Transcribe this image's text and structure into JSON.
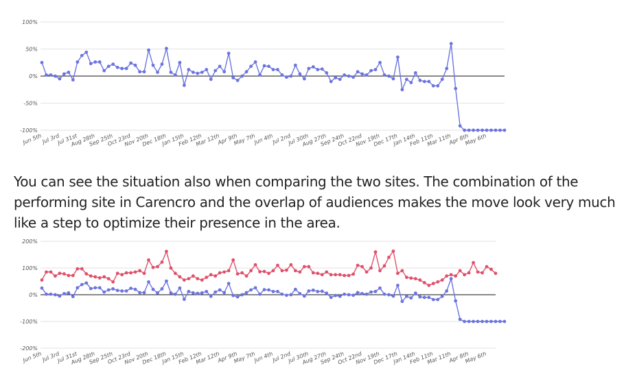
{
  "text": {
    "lines": [
      "You can see the situation also when comparing the two sites. The combination of the",
      "performing site in Carencro and the overlap of audiences makes the move look very much",
      "like a step to optimize their presence in the area."
    ]
  },
  "colors": {
    "blue": "#6b74e0",
    "red": "#e0506a",
    "grid": "#e2e2e2",
    "zero": "#111111"
  },
  "chart_data": [
    {
      "type": "line",
      "ylim": [
        -100,
        100
      ],
      "yticks": [
        "100%",
        "50%",
        "0%",
        "-50%",
        "-100%"
      ],
      "xticks": [
        "Jun 5th",
        "Jul 3rd",
        "Jul 31st",
        "Aug 28th",
        "Sep 25th",
        "Oct 23rd",
        "Nov 20th",
        "Dec 18th",
        "Jan 15th",
        "Feb 12th",
        "Mar 12th",
        "Apr 9th",
        "May 7th",
        "Jun 4th",
        "Jul 2nd",
        "Jul 30th",
        "Aug 27th",
        "Sep 24th",
        "Oct 22nd",
        "Nov 19th",
        "Dec 17th",
        "Jan 14th",
        "Feb 11th",
        "Mar 11th",
        "Apr 8th",
        "May 6th"
      ],
      "series": [
        {
          "color": "#6b74e0",
          "values": [
            25,
            2,
            2,
            0,
            -5,
            4,
            7,
            -7,
            26,
            38,
            44,
            23,
            26,
            26,
            10,
            18,
            22,
            16,
            14,
            14,
            24,
            20,
            8,
            8,
            48,
            20,
            7,
            22,
            51,
            7,
            2,
            25,
            -17,
            12,
            7,
            5,
            7,
            12,
            -6,
            10,
            18,
            8,
            42,
            -3,
            -8,
            0,
            8,
            18,
            26,
            2,
            19,
            18,
            12,
            12,
            2,
            -2,
            0,
            20,
            4,
            -5,
            14,
            17,
            12,
            13,
            6,
            -10,
            -3,
            -6,
            2,
            0,
            -2,
            8,
            4,
            2,
            10,
            12,
            25,
            2,
            0,
            -5,
            35,
            -25,
            -6,
            -12,
            6,
            -8,
            -10,
            -10,
            -18,
            -18,
            -6,
            14,
            60,
            -23,
            -92,
            -100,
            -100,
            -100,
            -100,
            -100,
            -100,
            -100,
            -100,
            -100,
            -100
          ]
        }
      ]
    },
    {
      "type": "line",
      "ylim": [
        -200,
        200
      ],
      "yticks": [
        "200%",
        "100%",
        "0%",
        "-100%",
        "-200%"
      ],
      "xticks": [
        "Jun 5th",
        "Jul 3rd",
        "Jul 31st",
        "Aug 28th",
        "Sep 25th",
        "Oct 23rd",
        "Nov 20th",
        "Dec 18th",
        "Jan 15th",
        "Feb 12th",
        "Mar 12th",
        "Apr 9th",
        "May 7th",
        "Jun 4th",
        "Jul 2nd",
        "Jul 30th",
        "Aug 27th",
        "Sep 24th",
        "Oct 22nd",
        "Nov 19th",
        "Dec 17th",
        "Jan 14th",
        "Feb 11th",
        "Mar 11th",
        "Apr 8th",
        "May 6th"
      ],
      "series": [
        {
          "color": "#e0506a",
          "values": [
            55,
            85,
            85,
            70,
            80,
            78,
            72,
            72,
            97,
            97,
            78,
            70,
            67,
            63,
            67,
            60,
            48,
            80,
            75,
            82,
            82,
            85,
            90,
            80,
            130,
            102,
            105,
            122,
            162,
            100,
            80,
            67,
            55,
            60,
            70,
            60,
            55,
            65,
            75,
            70,
            82,
            85,
            90,
            130,
            78,
            82,
            70,
            90,
            112,
            86,
            87,
            80,
            90,
            110,
            90,
            92,
            112,
            90,
            85,
            105,
            105,
            82,
            80,
            75,
            85,
            75,
            75,
            75,
            72,
            72,
            77,
            110,
            105,
            85,
            100,
            160,
            90,
            108,
            140,
            163,
            80,
            90,
            65,
            62,
            60,
            55,
            45,
            35,
            42,
            48,
            55,
            70,
            75,
            70,
            90,
            75,
            82,
            120,
            85,
            82,
            105,
            95,
            80
          ]
        },
        {
          "color": "#6b74e0",
          "values": [
            25,
            2,
            2,
            0,
            -5,
            4,
            7,
            -7,
            26,
            38,
            44,
            23,
            26,
            26,
            10,
            18,
            22,
            16,
            14,
            14,
            24,
            20,
            8,
            8,
            48,
            20,
            7,
            22,
            51,
            7,
            2,
            25,
            -17,
            12,
            7,
            5,
            7,
            12,
            -6,
            10,
            18,
            8,
            42,
            -3,
            -8,
            0,
            8,
            18,
            26,
            2,
            19,
            18,
            12,
            12,
            2,
            -2,
            0,
            20,
            4,
            -5,
            14,
            17,
            12,
            13,
            6,
            -10,
            -3,
            -6,
            2,
            0,
            -2,
            8,
            4,
            2,
            10,
            12,
            25,
            2,
            0,
            -5,
            35,
            -25,
            -6,
            -12,
            6,
            -8,
            -10,
            -10,
            -18,
            -18,
            -6,
            14,
            60,
            -23,
            -92,
            -100,
            -100,
            -100,
            -100,
            -100,
            -100,
            -100,
            -100,
            -100,
            -100
          ]
        }
      ]
    }
  ]
}
